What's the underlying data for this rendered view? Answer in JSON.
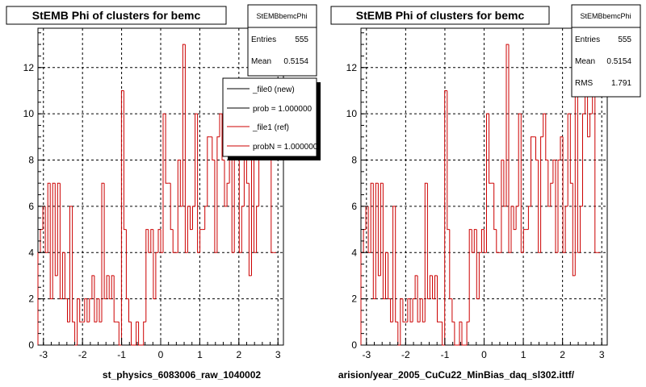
{
  "colors": {
    "background": "#ffffff",
    "frame": "#000000",
    "histogram": "#cc0000",
    "grid": "#000000",
    "legend_shadow": "#000000"
  },
  "footer_text": "",
  "chart_data": [
    {
      "type": "histogram",
      "title": "StEMB Phi of clusters for bemc",
      "xlabel": "st_physics_6083006_raw_1040002",
      "ylabel": "",
      "xlim": [
        -3.14,
        3.14
      ],
      "ylim": [
        0,
        13.7
      ],
      "grid": true,
      "x_ticks": [
        -3,
        -2,
        -1,
        0,
        1,
        2,
        3
      ],
      "x_tick_labels": [
        "-3",
        "-2",
        "-1",
        "0",
        "1",
        "2",
        "3"
      ],
      "y_ticks": [
        0,
        2,
        4,
        6,
        8,
        10,
        12
      ],
      "y_tick_labels": [
        "0",
        "2",
        "4",
        "6",
        "8",
        "10",
        "12"
      ],
      "stats_box": {
        "name": "StEMBbemcPhi",
        "rows": [
          {
            "label": "Entries",
            "value": "555"
          },
          {
            "label": "Mean",
            "value": "0.5154"
          }
        ]
      },
      "legend": {
        "placement": "top-right",
        "entries": [
          {
            "label": "_file0 (new)",
            "color": "#000000"
          },
          {
            "label": "prob = 1.000000",
            "color": "#000000"
          },
          {
            "label": "_file1 (ref)",
            "color": "#cc0000"
          },
          {
            "label": "probN = 1.000000",
            "color": "#cc0000"
          }
        ]
      },
      "bin_edges_start": -3.14,
      "bin_width": 0.0628,
      "values": [
        4,
        5,
        6,
        4,
        7,
        2,
        7,
        3,
        7,
        2,
        4,
        2,
        1,
        6,
        1,
        0,
        2,
        1,
        1,
        2,
        1,
        2,
        3,
        1,
        2,
        1,
        7,
        2,
        3,
        2,
        3,
        1,
        1,
        0,
        11,
        5,
        2,
        1,
        0,
        0,
        1,
        0,
        0,
        1,
        5,
        4,
        5,
        2,
        4,
        5,
        4,
        10,
        7,
        7,
        5,
        4,
        4,
        8,
        6,
        13,
        4,
        6,
        5,
        6,
        10,
        4,
        5,
        5,
        6,
        9,
        9,
        8,
        4,
        9,
        10,
        8,
        6,
        7,
        8,
        4,
        8,
        9,
        4,
        6,
        10,
        7,
        3,
        11,
        4,
        6,
        10,
        11,
        9,
        10,
        11,
        4,
        4
      ]
    },
    {
      "type": "histogram",
      "title": "StEMB Phi of clusters for bemc",
      "xlabel": "arision/year_2005_CuCu22_MinBias_daq_sl302.ittf/",
      "ylabel": "",
      "xlim": [
        -3.14,
        3.14
      ],
      "ylim": [
        0,
        13.7
      ],
      "grid": true,
      "x_ticks": [
        -3,
        -2,
        -1,
        0,
        1,
        2,
        3
      ],
      "x_tick_labels": [
        "-3",
        "-2",
        "-1",
        "0",
        "1",
        "2",
        "3"
      ],
      "y_ticks": [
        0,
        2,
        4,
        6,
        8,
        10,
        12
      ],
      "y_tick_labels": [
        "0",
        "2",
        "4",
        "6",
        "8",
        "10",
        "12"
      ],
      "stats_box": {
        "name": "StEMBbemcPhi",
        "rows": [
          {
            "label": "Entries",
            "value": "555"
          },
          {
            "label": "Mean",
            "value": "0.5154"
          },
          {
            "label": "RMS",
            "value": "1.791"
          }
        ]
      },
      "bin_edges_start": -3.14,
      "bin_width": 0.0628,
      "values": [
        4,
        5,
        6,
        4,
        7,
        2,
        7,
        3,
        7,
        2,
        4,
        2,
        1,
        6,
        1,
        0,
        2,
        1,
        1,
        2,
        1,
        2,
        3,
        1,
        2,
        1,
        7,
        2,
        3,
        2,
        3,
        1,
        1,
        0,
        11,
        5,
        2,
        1,
        0,
        0,
        1,
        0,
        0,
        1,
        5,
        4,
        5,
        2,
        4,
        5,
        4,
        10,
        7,
        7,
        5,
        4,
        4,
        8,
        6,
        13,
        4,
        6,
        5,
        6,
        10,
        4,
        5,
        5,
        6,
        9,
        9,
        8,
        4,
        9,
        10,
        8,
        6,
        7,
        8,
        4,
        8,
        9,
        4,
        6,
        10,
        7,
        3,
        11,
        4,
        6,
        10,
        11,
        9,
        10,
        11,
        4,
        4
      ]
    }
  ]
}
